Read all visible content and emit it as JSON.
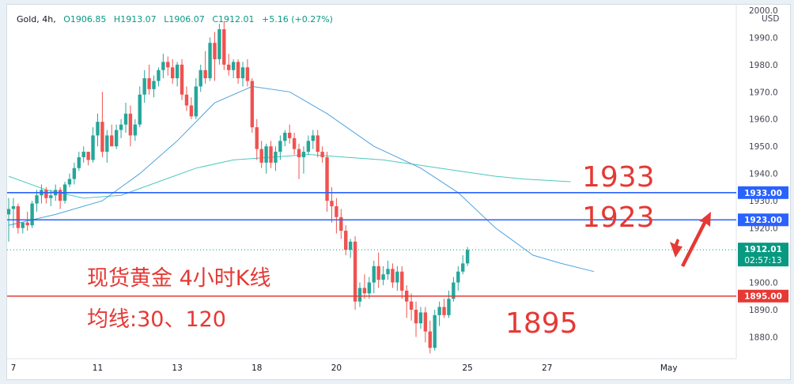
{
  "header": {
    "symbol": "Gold, 4h,",
    "open": "O1906.85",
    "high": "H1913.07",
    "low": "L1906.07",
    "close": "C1912.01",
    "change": "+5.16 (+0.27%)"
  },
  "chart_data": {
    "type": "candlestick",
    "title": "",
    "xlabel": "",
    "ylabel": "",
    "ylim": [
      1872,
      2002
    ],
    "y_ticks": [
      2000,
      1990,
      1980,
      1970,
      1960,
      1950,
      1940,
      1930,
      1920,
      1900,
      1890,
      1880
    ],
    "currency": "USD",
    "x_ticks": [
      {
        "i": 1,
        "label": "7"
      },
      {
        "i": 19,
        "label": "11"
      },
      {
        "i": 36,
        "label": "13"
      },
      {
        "i": 53,
        "label": "18"
      },
      {
        "i": 70,
        "label": "20"
      },
      {
        "i": 98,
        "label": "25"
      },
      {
        "i": 115,
        "label": "27"
      },
      {
        "i": 141,
        "label": "May"
      }
    ],
    "candles": [
      [
        1925,
        1931,
        1915,
        1927
      ],
      [
        1927,
        1931,
        1920,
        1928
      ],
      [
        1928,
        1929,
        1918,
        1920
      ],
      [
        1920,
        1922,
        1918,
        1922
      ],
      [
        1922,
        1926,
        1919,
        1921
      ],
      [
        1921,
        1930,
        1920,
        1929
      ],
      [
        1929,
        1934,
        1926,
        1932
      ],
      [
        1932,
        1936,
        1929,
        1934
      ],
      [
        1934,
        1935,
        1929,
        1931
      ],
      [
        1931,
        1934,
        1928,
        1932
      ],
      [
        1932,
        1936,
        1930,
        1934
      ],
      [
        1934,
        1935,
        1927,
        1930
      ],
      [
        1930,
        1937,
        1929,
        1936
      ],
      [
        1936,
        1940,
        1935,
        1938
      ],
      [
        1938,
        1944,
        1936,
        1942
      ],
      [
        1942,
        1948,
        1941,
        1946
      ],
      [
        1946,
        1950,
        1944,
        1948
      ],
      [
        1948,
        1948,
        1943,
        1945
      ],
      [
        1945,
        1957,
        1944,
        1954
      ],
      [
        1954,
        1962,
        1950,
        1959
      ],
      [
        1959,
        1970,
        1946,
        1948
      ],
      [
        1948,
        1956,
        1944,
        1954
      ],
      [
        1954,
        1958,
        1950,
        1950
      ],
      [
        1950,
        1958,
        1949,
        1956
      ],
      [
        1956,
        1960,
        1953,
        1958
      ],
      [
        1958,
        1966,
        1955,
        1962
      ],
      [
        1962,
        1965,
        1950,
        1954
      ],
      [
        1954,
        1960,
        1952,
        1958
      ],
      [
        1958,
        1972,
        1957,
        1969
      ],
      [
        1969,
        1978,
        1966,
        1975
      ],
      [
        1975,
        1980,
        1969,
        1971
      ],
      [
        1971,
        1976,
        1968,
        1974
      ],
      [
        1974,
        1979,
        1972,
        1978
      ],
      [
        1978,
        1984,
        1975,
        1981
      ],
      [
        1981,
        1983,
        1976,
        1979
      ],
      [
        1979,
        1982,
        1973,
        1975
      ],
      [
        1975,
        1981,
        1972,
        1980
      ],
      [
        1980,
        1982,
        1967,
        1969
      ],
      [
        1969,
        1972,
        1963,
        1965
      ],
      [
        1965,
        1968,
        1960,
        1961
      ],
      [
        1961,
        1975,
        1960,
        1972
      ],
      [
        1972,
        1980,
        1970,
        1978
      ],
      [
        1978,
        1985,
        1973,
        1975
      ],
      [
        1975,
        1990,
        1974,
        1988
      ],
      [
        1988,
        1992,
        1974,
        1982
      ],
      [
        1982,
        1995,
        1980,
        1993
      ],
      [
        1993,
        1996,
        1978,
        1980
      ],
      [
        1980,
        1984,
        1976,
        1978
      ],
      [
        1978,
        1982,
        1975,
        1981
      ],
      [
        1981,
        1982,
        1973,
        1975
      ],
      [
        1975,
        1981,
        1972,
        1979
      ],
      [
        1979,
        1982,
        1972,
        1974
      ],
      [
        1974,
        1975,
        1955,
        1957
      ],
      [
        1957,
        1960,
        1945,
        1949
      ],
      [
        1949,
        1952,
        1942,
        1944
      ],
      [
        1944,
        1951,
        1940,
        1950
      ],
      [
        1950,
        1952,
        1942,
        1944
      ],
      [
        1944,
        1950,
        1941,
        1948
      ],
      [
        1948,
        1954,
        1945,
        1952
      ],
      [
        1952,
        1956,
        1950,
        1955
      ],
      [
        1955,
        1958,
        1951,
        1953
      ],
      [
        1953,
        1955,
        1947,
        1949
      ],
      [
        1949,
        1951,
        1938,
        1946
      ],
      [
        1946,
        1950,
        1940,
        1948
      ],
      [
        1948,
        1954,
        1947,
        1952
      ],
      [
        1952,
        1956,
        1949,
        1954
      ],
      [
        1954,
        1956,
        1946,
        1948
      ],
      [
        1948,
        1950,
        1944,
        1946
      ],
      [
        1946,
        1948,
        1926,
        1930
      ],
      [
        1930,
        1935,
        1922,
        1928
      ],
      [
        1928,
        1931,
        1918,
        1924
      ],
      [
        1924,
        1927,
        1916,
        1919
      ],
      [
        1919,
        1921,
        1910,
        1912
      ],
      [
        1912,
        1916,
        1909,
        1915
      ],
      [
        1915,
        1917,
        1890,
        1893
      ],
      [
        1893,
        1900,
        1891,
        1898
      ],
      [
        1898,
        1903,
        1894,
        1896
      ],
      [
        1896,
        1902,
        1894,
        1900
      ],
      [
        1900,
        1908,
        1896,
        1906
      ],
      [
        1906,
        1911,
        1898,
        1901
      ],
      [
        1901,
        1906,
        1899,
        1903
      ],
      [
        1903,
        1908,
        1901,
        1905
      ],
      [
        1905,
        1907,
        1898,
        1900
      ],
      [
        1900,
        1906,
        1897,
        1904
      ],
      [
        1904,
        1906,
        1894,
        1897
      ],
      [
        1897,
        1899,
        1887,
        1893
      ],
      [
        1893,
        1896,
        1886,
        1890
      ],
      [
        1890,
        1893,
        1880,
        1885
      ],
      [
        1885,
        1891,
        1883,
        1889
      ],
      [
        1889,
        1891,
        1878,
        1882
      ],
      [
        1882,
        1886,
        1874,
        1876
      ],
      [
        1876,
        1890,
        1875,
        1888
      ],
      [
        1888,
        1893,
        1884,
        1891
      ],
      [
        1891,
        1894,
        1887,
        1888
      ],
      [
        1888,
        1897,
        1887,
        1894
      ],
      [
        1894,
        1902,
        1893,
        1900
      ],
      [
        1900,
        1906,
        1897,
        1904
      ],
      [
        1904,
        1910,
        1903,
        1907
      ],
      [
        1907,
        1913,
        1906,
        1912
      ]
    ],
    "ma30": [
      [
        0,
        1921
      ],
      [
        10,
        1925
      ],
      [
        20,
        1930
      ],
      [
        28,
        1940
      ],
      [
        36,
        1952
      ],
      [
        44,
        1966
      ],
      [
        52,
        1972
      ],
      [
        60,
        1970
      ],
      [
        68,
        1962
      ],
      [
        78,
        1950
      ],
      [
        88,
        1942
      ],
      [
        96,
        1933
      ],
      [
        104,
        1920
      ],
      [
        112,
        1910
      ],
      [
        118,
        1907
      ],
      [
        125,
        1904
      ]
    ],
    "ma120": [
      [
        0,
        1939
      ],
      [
        8,
        1934
      ],
      [
        16,
        1931
      ],
      [
        24,
        1932
      ],
      [
        32,
        1937
      ],
      [
        40,
        1942
      ],
      [
        48,
        1945
      ],
      [
        56,
        1946
      ],
      [
        64,
        1947
      ],
      [
        72,
        1946
      ],
      [
        80,
        1945
      ],
      [
        88,
        1943
      ],
      [
        96,
        1941
      ],
      [
        104,
        1939
      ],
      [
        110,
        1938
      ],
      [
        120,
        1937
      ]
    ],
    "hlines": [
      {
        "price": 1933,
        "label": "1933.00",
        "color": "#2962ff"
      },
      {
        "price": 1923,
        "label": "1923.00",
        "color": "#2962ff"
      },
      {
        "price": 1895,
        "label": "1895.00",
        "color": "#e53935"
      }
    ],
    "last_price": {
      "label": "1912.01",
      "countdown": "02:57:13",
      "price": 1912,
      "color": "#089981"
    },
    "annotations": {
      "n1933": "1933",
      "n1923": "1923",
      "n1895": "1895",
      "title_cn": "现货黄金 4小时K线",
      "ma_cn": "均线:30、120"
    }
  }
}
